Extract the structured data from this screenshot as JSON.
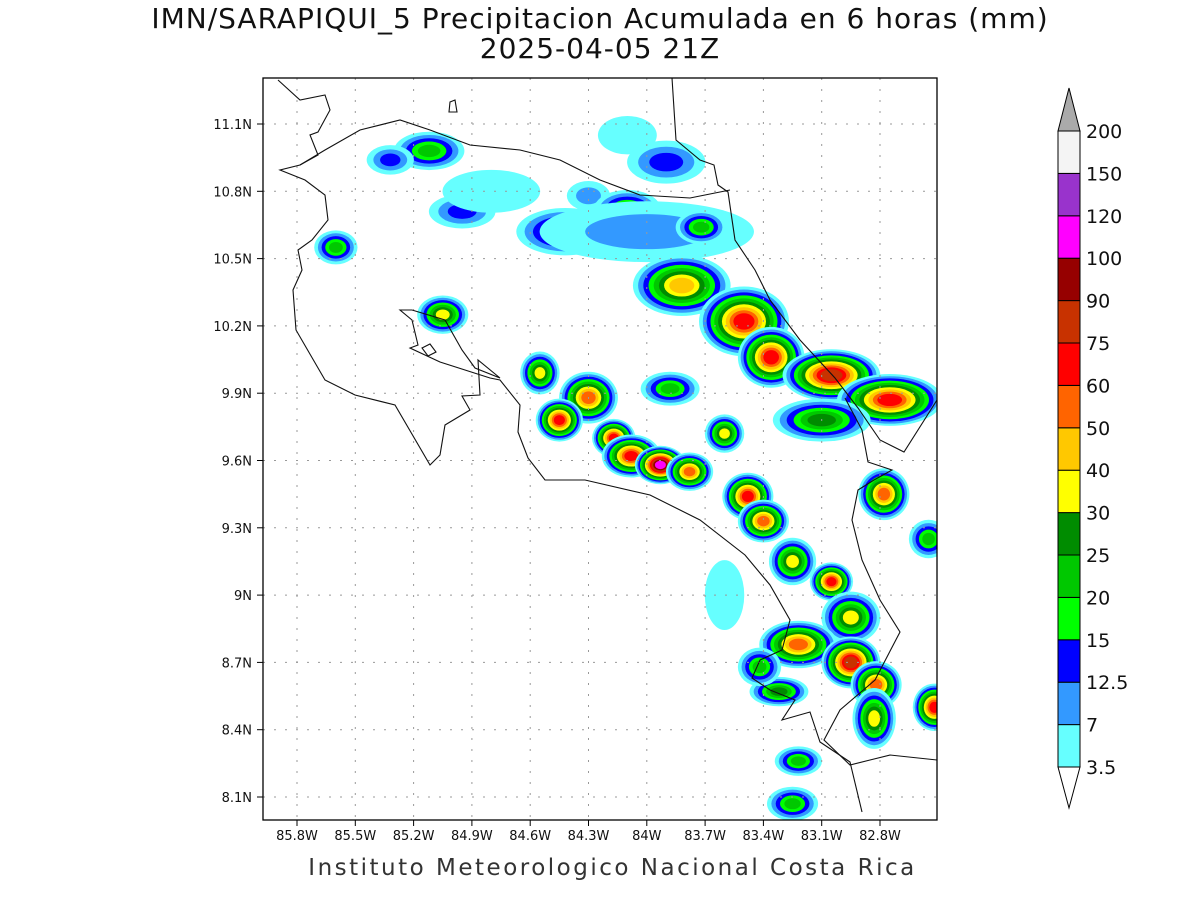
{
  "title": {
    "line1": "IMN/SARAPIQUI_5 Precipitacion Acumulada en 6 horas (mm)",
    "line2": "2025-04-05 21Z"
  },
  "footer": "Instituto Meteorologico Nacional Costa Rica",
  "map": {
    "lon_range": [
      85.97,
      82.5
    ],
    "lat_range": [
      8.0,
      11.3
    ],
    "lon_ticks": [
      "85.8W",
      "85.5W",
      "85.2W",
      "84.9W",
      "84.6W",
      "84.3W",
      "84W",
      "83.7W",
      "83.4W",
      "83.1W",
      "82.8W"
    ],
    "lon_tick_values": [
      85.8,
      85.5,
      85.2,
      84.9,
      84.6,
      84.3,
      84.0,
      83.7,
      83.4,
      83.1,
      82.8
    ],
    "lat_ticks": [
      "11.1N",
      "10.8N",
      "10.5N",
      "10.2N",
      "9.9N",
      "9.6N",
      "9.3N",
      "9N",
      "8.7N",
      "8.4N",
      "8.1N"
    ],
    "lat_tick_values": [
      11.1,
      10.8,
      10.5,
      10.2,
      9.9,
      9.6,
      9.3,
      9.0,
      8.7,
      8.4,
      8.1
    ],
    "grid": "dotted"
  },
  "colorbar": {
    "labels": [
      "3.5",
      "7",
      "12.5",
      "15",
      "20",
      "25",
      "30",
      "40",
      "50",
      "60",
      "75",
      "90",
      "100",
      "120",
      "150",
      "200"
    ],
    "colors": [
      "#66ffff",
      "#3399ff",
      "#0000ff",
      "#00ff00",
      "#00c800",
      "#008c00",
      "#ffff00",
      "#ffc800",
      "#ff6400",
      "#ff0000",
      "#c83200",
      "#960000",
      "#ff00ff",
      "#9933cc",
      "#f4f4f4"
    ],
    "over_color": "#aaaaaa",
    "under_color": "#ffffff"
  },
  "precip_cells": [
    {
      "lon": 85.12,
      "lat": 10.98,
      "rlon": 0.13,
      "rlat": 0.05,
      "peak": 22
    },
    {
      "lon": 85.32,
      "lat": 10.94,
      "rlon": 0.07,
      "rlat": 0.03,
      "peak": 13
    },
    {
      "lon": 84.95,
      "lat": 10.71,
      "rlon": 0.12,
      "rlat": 0.04,
      "peak": 13
    },
    {
      "lon": 84.8,
      "lat": 10.8,
      "rlon": 0.2,
      "rlat": 0.06,
      "peak": 4
    },
    {
      "lon": 84.3,
      "lat": 10.78,
      "rlon": 0.06,
      "rlat": 0.03,
      "peak": 8
    },
    {
      "lon": 84.1,
      "lat": 10.72,
      "rlon": 0.12,
      "rlat": 0.05,
      "peak": 22
    },
    {
      "lon": 84.42,
      "lat": 10.62,
      "rlon": 0.2,
      "rlat": 0.07,
      "peak": 22
    },
    {
      "lon": 84.0,
      "lat": 10.62,
      "rlon": 0.5,
      "rlat": 0.1,
      "peak": 8
    },
    {
      "lon": 83.72,
      "lat": 10.64,
      "rlon": 0.08,
      "rlat": 0.04,
      "peak": 22
    },
    {
      "lon": 85.6,
      "lat": 10.55,
      "rlon": 0.06,
      "rlat": 0.04,
      "peak": 22
    },
    {
      "lon": 85.05,
      "lat": 10.25,
      "rlon": 0.08,
      "rlat": 0.05,
      "peak": 32
    },
    {
      "lon": 83.82,
      "lat": 10.38,
      "rlon": 0.2,
      "rlat": 0.1,
      "peak": 45
    },
    {
      "lon": 83.5,
      "lat": 10.22,
      "rlon": 0.18,
      "rlat": 0.12,
      "peak": 65
    },
    {
      "lon": 83.36,
      "lat": 10.06,
      "rlon": 0.12,
      "rlat": 0.1,
      "peak": 70
    },
    {
      "lon": 83.05,
      "lat": 9.98,
      "rlon": 0.2,
      "rlat": 0.08,
      "peak": 80
    },
    {
      "lon": 82.75,
      "lat": 9.87,
      "rlon": 0.22,
      "rlat": 0.08,
      "peak": 70
    },
    {
      "lon": 83.1,
      "lat": 9.78,
      "rlon": 0.2,
      "rlat": 0.06,
      "peak": 27
    },
    {
      "lon": 84.55,
      "lat": 9.99,
      "rlon": 0.05,
      "rlat": 0.06,
      "peak": 32
    },
    {
      "lon": 84.3,
      "lat": 9.88,
      "rlon": 0.1,
      "rlat": 0.08,
      "peak": 52
    },
    {
      "lon": 84.45,
      "lat": 9.78,
      "rlon": 0.07,
      "rlat": 0.06,
      "peak": 62
    },
    {
      "lon": 84.17,
      "lat": 9.7,
      "rlon": 0.06,
      "rlat": 0.05,
      "peak": 62
    },
    {
      "lon": 84.08,
      "lat": 9.62,
      "rlon": 0.1,
      "rlat": 0.06,
      "peak": 65
    },
    {
      "lon": 83.93,
      "lat": 9.58,
      "rlon": 0.08,
      "rlat": 0.05,
      "peak": 105
    },
    {
      "lon": 83.78,
      "lat": 9.55,
      "rlon": 0.07,
      "rlat": 0.05,
      "peak": 52
    },
    {
      "lon": 83.48,
      "lat": 9.44,
      "rlon": 0.08,
      "rlat": 0.07,
      "peak": 65
    },
    {
      "lon": 83.4,
      "lat": 9.33,
      "rlon": 0.08,
      "rlat": 0.06,
      "peak": 52
    },
    {
      "lon": 83.25,
      "lat": 9.15,
      "rlon": 0.07,
      "rlat": 0.07,
      "peak": 35
    },
    {
      "lon": 83.05,
      "lat": 9.06,
      "rlon": 0.06,
      "rlat": 0.05,
      "peak": 65
    },
    {
      "lon": 82.95,
      "lat": 8.9,
      "rlon": 0.1,
      "rlat": 0.08,
      "peak": 38
    },
    {
      "lon": 83.22,
      "lat": 8.78,
      "rlon": 0.15,
      "rlat": 0.07,
      "peak": 52
    },
    {
      "lon": 82.95,
      "lat": 8.7,
      "rlon": 0.1,
      "rlat": 0.08,
      "peak": 85
    },
    {
      "lon": 82.82,
      "lat": 8.6,
      "rlon": 0.08,
      "rlat": 0.07,
      "peak": 52
    },
    {
      "lon": 82.52,
      "lat": 8.5,
      "rlon": 0.06,
      "rlat": 0.07,
      "peak": 70
    },
    {
      "lon": 82.83,
      "lat": 8.45,
      "rlon": 0.06,
      "rlat": 0.1,
      "peak": 38
    },
    {
      "lon": 83.6,
      "lat": 9.72,
      "rlon": 0.05,
      "rlat": 0.05,
      "peak": 35
    },
    {
      "lon": 83.88,
      "lat": 9.92,
      "rlon": 0.1,
      "rlat": 0.04,
      "peak": 22
    },
    {
      "lon": 82.78,
      "lat": 9.45,
      "rlon": 0.08,
      "rlat": 0.08,
      "peak": 52
    },
    {
      "lon": 83.32,
      "lat": 8.57,
      "rlon": 0.1,
      "rlat": 0.03,
      "peak": 27
    },
    {
      "lon": 83.22,
      "lat": 8.26,
      "rlon": 0.07,
      "rlat": 0.03,
      "peak": 22
    },
    {
      "lon": 83.25,
      "lat": 8.07,
      "rlon": 0.08,
      "rlat": 0.04,
      "peak": 22
    },
    {
      "lon": 83.42,
      "lat": 8.68,
      "rlon": 0.06,
      "rlat": 0.05,
      "peak": 22
    },
    {
      "lon": 82.55,
      "lat": 9.25,
      "rlon": 0.05,
      "rlat": 0.05,
      "peak": 22
    },
    {
      "lon": 83.6,
      "lat": 9.0,
      "rlon": 0.05,
      "rlat": 0.12,
      "peak": 5
    },
    {
      "lon": 84.1,
      "lat": 11.05,
      "rlon": 0.1,
      "rlat": 0.05,
      "peak": 5
    },
    {
      "lon": 83.9,
      "lat": 10.93,
      "rlon": 0.15,
      "rlat": 0.06,
      "peak": 13
    }
  ]
}
